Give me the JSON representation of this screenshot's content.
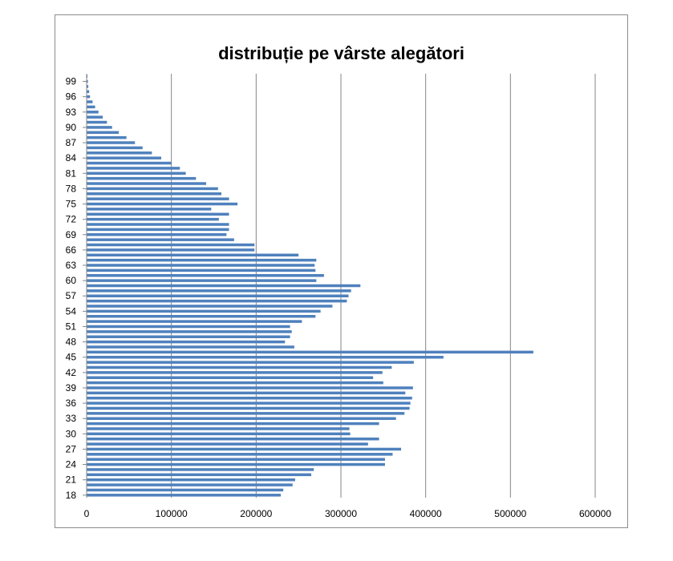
{
  "chart_data": {
    "type": "bar",
    "orientation": "horizontal",
    "title": "distribuție pe vârste alegători",
    "xlabel": "",
    "ylabel": "",
    "xlim": [
      0,
      600000
    ],
    "x_ticks": [
      "0",
      "100000",
      "200000",
      "300000",
      "400000",
      "500000",
      "600000"
    ],
    "y_tick_labels": [
      "18",
      "21",
      "24",
      "27",
      "30",
      "33",
      "36",
      "39",
      "42",
      "45",
      "48",
      "51",
      "54",
      "57",
      "60",
      "63",
      "66",
      "69",
      "72",
      "75",
      "78",
      "81",
      "84",
      "87",
      "90",
      "93",
      "96",
      "99"
    ],
    "grid": true,
    "legend": "none",
    "bar_color": "#4f81bd",
    "categories": [
      "18",
      "19",
      "20",
      "21",
      "22",
      "23",
      "24",
      "25",
      "26",
      "27",
      "28",
      "29",
      "30",
      "31",
      "32",
      "33",
      "34",
      "35",
      "36",
      "37",
      "38",
      "39",
      "40",
      "41",
      "42",
      "43",
      "44",
      "45",
      "46",
      "47",
      "48",
      "49",
      "50",
      "51",
      "52",
      "53",
      "54",
      "55",
      "56",
      "57",
      "58",
      "59",
      "60",
      "61",
      "62",
      "63",
      "64",
      "65",
      "66",
      "67",
      "68",
      "69",
      "70",
      "71",
      "72",
      "73",
      "74",
      "75",
      "76",
      "77",
      "78",
      "79",
      "80",
      "81",
      "82",
      "83",
      "84",
      "85",
      "86",
      "87",
      "88",
      "89",
      "90",
      "91",
      "92",
      "93",
      "94",
      "95",
      "96",
      "97",
      "98",
      "99",
      "100"
    ],
    "values": [
      229000,
      232000,
      243000,
      246000,
      265000,
      268000,
      352000,
      352000,
      361000,
      371000,
      332000,
      345000,
      311000,
      310000,
      345000,
      365000,
      375000,
      381000,
      382000,
      384000,
      376000,
      385000,
      350000,
      338000,
      349000,
      360000,
      386000,
      421000,
      527000,
      245000,
      234000,
      240000,
      242000,
      240000,
      254000,
      270000,
      276000,
      290000,
      307000,
      309000,
      312000,
      323000,
      271000,
      280000,
      270000,
      269000,
      271000,
      250000,
      198000,
      198000,
      174000,
      165000,
      168000,
      168000,
      156000,
      168000,
      147000,
      178000,
      168000,
      159000,
      155000,
      141000,
      129000,
      117000,
      110000,
      100000,
      88000,
      77000,
      66000,
      57000,
      47000,
      38000,
      30000,
      24000,
      19000,
      14000,
      10000,
      7000,
      4000,
      3000,
      2000,
      1500,
      1000
    ]
  }
}
